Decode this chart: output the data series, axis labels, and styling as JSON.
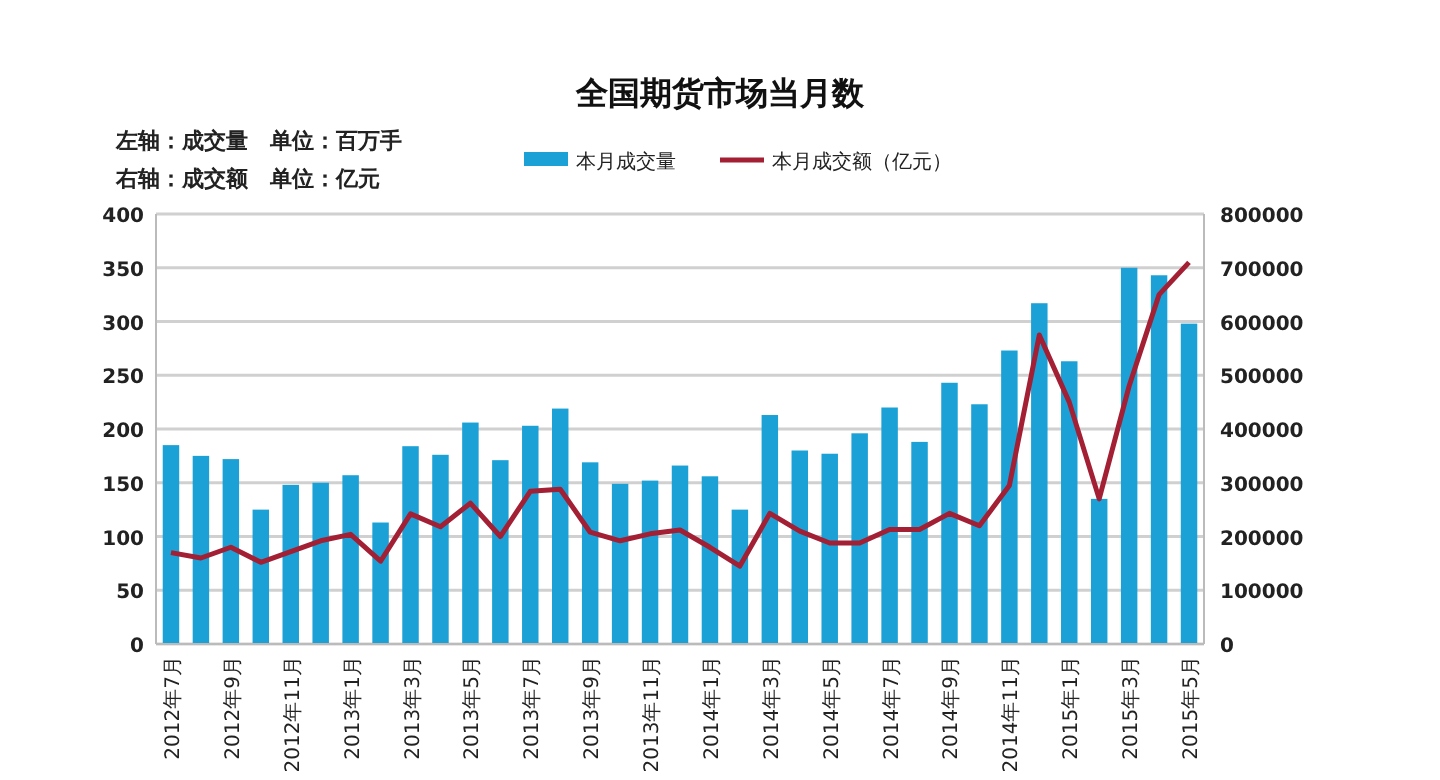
{
  "chart_data": {
    "type": "bar",
    "title": "全国期货市场当月数",
    "annotations": [
      "左轴：成交量　单位：百万手",
      "右轴：成交额　单位：亿元"
    ],
    "categories": [
      "2012年7月",
      null,
      "2012年9月",
      null,
      "2012年11月",
      null,
      "2013年1月",
      null,
      "2013年3月",
      null,
      "2013年5月",
      null,
      "2013年7月",
      null,
      "2013年9月",
      null,
      "2013年11月",
      null,
      "2014年1月",
      null,
      "2014年3月",
      null,
      "2014年5月",
      null,
      "2014年7月",
      null,
      "2014年9月",
      null,
      "2014年11月",
      null,
      "2015年1月",
      null,
      "2015年3月",
      null,
      "2015年5月"
    ],
    "series": [
      {
        "name": "本月成交量",
        "color": "#1ba1d6",
        "values": [
          185,
          175,
          172,
          125,
          148,
          150,
          157,
          113,
          184,
          176,
          206,
          171,
          203,
          219,
          169,
          149,
          152,
          166,
          156,
          125,
          213,
          180,
          177,
          196,
          220,
          188,
          243,
          223,
          273,
          317,
          263,
          135,
          350,
          343,
          298
        ]
      },
      {
        "name": "本月成交额（亿元）",
        "type": "line",
        "axis": "y2",
        "color": "#a31f34",
        "values": [
          170000,
          160000,
          180000,
          152000,
          172000,
          192000,
          204000,
          154000,
          242000,
          218000,
          262000,
          200000,
          284000,
          288000,
          208000,
          192000,
          205000,
          212000,
          180000,
          145000,
          243000,
          210000,
          188000,
          188000,
          213000,
          213000,
          243000,
          220000,
          295000,
          575000,
          450000,
          270000,
          480000,
          650000,
          710000
        ]
      }
    ],
    "ylim": [
      0,
      400
    ],
    "yticks": [
      0,
      50,
      100,
      150,
      200,
      250,
      300,
      350,
      400
    ],
    "y2lim": [
      0,
      800000
    ],
    "y2ticks": [
      0,
      100000,
      200000,
      300000,
      400000,
      500000,
      600000,
      700000,
      800000
    ],
    "grid": "y",
    "legend": "top"
  }
}
